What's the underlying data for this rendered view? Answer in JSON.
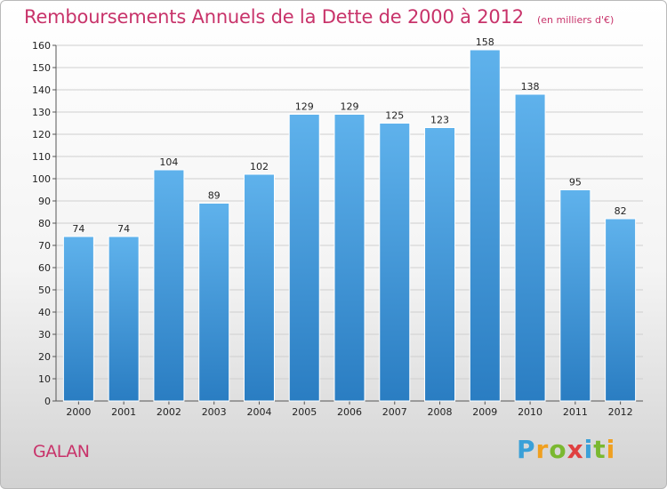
{
  "header": {
    "title": "Remboursements Annuels de la Dette de 2000 à 2012",
    "unit": "(en milliers d'€)"
  },
  "place": "GALAN",
  "brand": "Proxiti",
  "colors": {
    "bar_top": "#5fb2ec",
    "bar_bottom": "#2a7dc2",
    "grid": "#cfcfcf",
    "title": "#c8336a"
  },
  "chart_data": {
    "type": "bar",
    "categories": [
      "2000",
      "2001",
      "2002",
      "2003",
      "2004",
      "2005",
      "2006",
      "2007",
      "2008",
      "2009",
      "2010",
      "2011",
      "2012"
    ],
    "values": [
      74,
      74,
      104,
      89,
      102,
      129,
      129,
      125,
      123,
      158,
      138,
      95,
      82
    ],
    "ylim": [
      0,
      160
    ],
    "yticks": [
      0,
      10,
      20,
      30,
      40,
      50,
      60,
      70,
      80,
      90,
      100,
      110,
      120,
      130,
      140,
      150,
      160
    ],
    "grid": true,
    "data_labels": true
  }
}
